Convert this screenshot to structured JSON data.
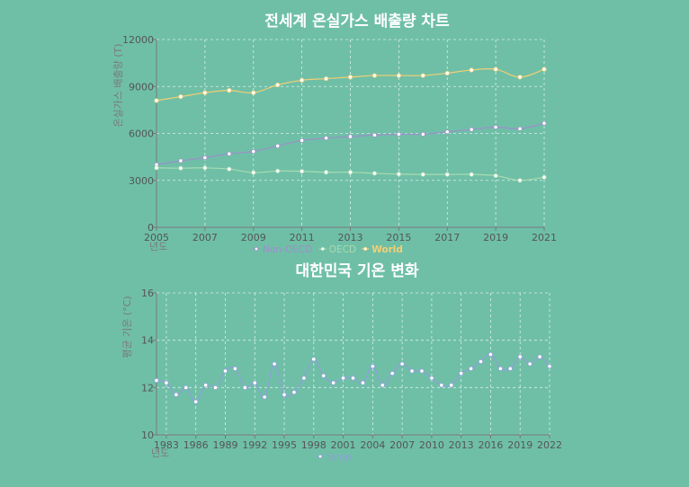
{
  "chart_data": [
    {
      "type": "line",
      "title": "전세계 온실가스 배출량 차트",
      "xlabel": "년도",
      "ylabel": "온실가스 배출량 (T)",
      "xlim": [
        2005,
        2021
      ],
      "ylim": [
        0,
        12000
      ],
      "xticks": [
        "2005",
        "2007",
        "2009",
        "2011",
        "2013",
        "2015",
        "2017",
        "2019",
        "2021"
      ],
      "yticks": [
        "0",
        "3000",
        "6000",
        "9000",
        "12000"
      ],
      "grid": true,
      "legend_position": "bottom",
      "x": [
        2005,
        2006,
        2007,
        2008,
        2009,
        2010,
        2011,
        2012,
        2013,
        2014,
        2015,
        2016,
        2017,
        2018,
        2019,
        2020,
        2021
      ],
      "series": [
        {
          "name": "Non-OECD",
          "color": "#9b90c8",
          "values": [
            4000,
            4250,
            4450,
            4700,
            4850,
            5200,
            5550,
            5700,
            5800,
            5900,
            5950,
            5950,
            6100,
            6250,
            6400,
            6300,
            6650
          ]
        },
        {
          "name": "OECD",
          "color": "#a8dbb0",
          "values": [
            3800,
            3780,
            3800,
            3720,
            3500,
            3600,
            3580,
            3520,
            3520,
            3450,
            3400,
            3380,
            3380,
            3380,
            3300,
            3000,
            3200
          ]
        },
        {
          "name": "World",
          "color": "#f2cf73",
          "values": [
            8100,
            8350,
            8600,
            8750,
            8600,
            9100,
            9400,
            9500,
            9600,
            9700,
            9700,
            9700,
            9850,
            10050,
            10100,
            9600,
            10100
          ]
        }
      ]
    },
    {
      "type": "line",
      "title": "대한민국 기온 변화",
      "xlabel": "년도",
      "ylabel": "평균 기온 (°C)",
      "xlim": [
        1982,
        2022
      ],
      "ylim": [
        10,
        16
      ],
      "xticks": [
        "1983",
        "1986",
        "1989",
        "1992",
        "1995",
        "1998",
        "2001",
        "2004",
        "2007",
        "2010",
        "2013",
        "2016",
        "2019",
        "2022"
      ],
      "yticks": [
        "10",
        "12",
        "14",
        "16"
      ],
      "grid": true,
      "legend_position": "bottom",
      "x": [
        1982,
        1983,
        1984,
        1985,
        1986,
        1987,
        1988,
        1989,
        1990,
        1991,
        1992,
        1993,
        1994,
        1995,
        1996,
        1997,
        1998,
        1999,
        2000,
        2001,
        2002,
        2003,
        2004,
        2005,
        2006,
        2007,
        2008,
        2009,
        2010,
        2011,
        2012,
        2013,
        2014,
        2015,
        2016,
        2017,
        2018,
        2019,
        2020,
        2021,
        2022
      ],
      "series": [
        {
          "name": "temp",
          "color": "#8fa0d8",
          "values": [
            12.3,
            12.2,
            11.7,
            12.0,
            11.4,
            12.1,
            12.0,
            12.7,
            12.8,
            12.0,
            12.2,
            11.6,
            13.0,
            11.7,
            11.8,
            12.4,
            13.2,
            12.5,
            12.2,
            12.4,
            12.4,
            12.2,
            12.9,
            12.1,
            12.6,
            13.0,
            12.7,
            12.7,
            12.4,
            12.1,
            12.1,
            12.6,
            12.8,
            13.1,
            13.4,
            12.8,
            12.8,
            13.3,
            13.0,
            13.3,
            12.9
          ]
        }
      ]
    }
  ]
}
